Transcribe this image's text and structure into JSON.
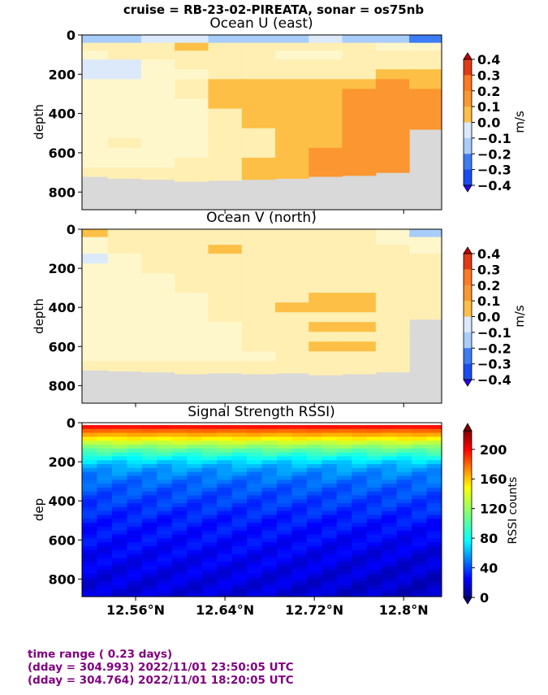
{
  "suptitle": "cruise = RB-23-02-PIREATA,  sonar = os75nb",
  "footer": {
    "line1": "time range ( 0.23 days)",
    "line2": "(dday = 304.993) 2022/11/01 23:50:05 UTC",
    "line3": "(dday = 304.764) 2022/11/01 18:20:05 UTC"
  },
  "colors": {
    "nodata": "#d9d9d9",
    "div_levels": [
      "#2a00ff",
      "#1a4cf2",
      "#3c7cf5",
      "#a9cdfa",
      "#dbe9fb",
      "#fff7cc",
      "#ffefb3",
      "#fdbf45",
      "#fb9630",
      "#fd7a22",
      "#e33a16",
      "#c40000"
    ]
  },
  "chart_data": [
    {
      "type": "heatmap",
      "title": "Ocean U (east)",
      "xlabel": "",
      "ylabel": "depth",
      "x_ticks": [
        "12.56°N",
        "12.64°N",
        "12.72°N",
        "12.8°N"
      ],
      "x_tick_values": [
        12.56,
        12.64,
        12.72,
        12.8
      ],
      "xlim": [
        12.512,
        12.834
      ],
      "ylim": [
        890,
        0
      ],
      "y_ticks": [
        "0",
        "200",
        "400",
        "600",
        "800"
      ],
      "y_tick_values": [
        0,
        200,
        400,
        600,
        800
      ],
      "colorbar": {
        "label": "m/s",
        "ticks": [
          "0.4",
          "0.3",
          "0.2",
          "0.1",
          "0.0",
          "−0.1",
          "−0.2",
          "−0.3",
          "−0.4"
        ],
        "levels": [
          -0.4,
          -0.3,
          -0.2,
          -0.1,
          0.0,
          0.1,
          0.2,
          0.3,
          0.4
        ],
        "extend": "both"
      },
      "depth_bins": [
        20,
        60,
        100,
        150,
        200,
        250,
        300,
        350,
        400,
        450,
        500,
        550,
        600,
        650,
        700,
        750
      ],
      "latitudes": [
        12.52,
        12.55,
        12.58,
        12.61,
        12.64,
        12.67,
        12.7,
        12.73,
        12.76,
        12.79,
        12.82
      ],
      "values": [
        [
          -0.25,
          -0.2,
          -0.15,
          -0.15,
          -0.2,
          -0.25,
          -0.2,
          -0.15,
          -0.2,
          -0.25,
          -0.3
        ],
        [
          0.05,
          0.05,
          0.1,
          0.15,
          0.1,
          0.05,
          0.05,
          0.1,
          0.05,
          -0.05,
          -0.1
        ],
        [
          -0.05,
          0.05,
          0.05,
          0.05,
          0.05,
          0.05,
          -0.05,
          -0.05,
          0.05,
          0.05,
          0.05
        ],
        [
          -0.15,
          -0.15,
          -0.05,
          0.05,
          0.05,
          0.05,
          0.05,
          0.05,
          0.05,
          0.05,
          0.05
        ],
        [
          -0.15,
          -0.15,
          -0.1,
          -0.05,
          0.05,
          0.05,
          0.05,
          0.05,
          0.05,
          0.15,
          0.15
        ],
        [
          -0.05,
          -0.05,
          -0.05,
          0.05,
          0.15,
          0.15,
          0.15,
          0.15,
          0.15,
          0.2,
          0.15
        ],
        [
          -0.05,
          -0.05,
          -0.05,
          0.05,
          0.15,
          0.15,
          0.15,
          0.15,
          0.25,
          0.25,
          0.25
        ],
        [
          -0.05,
          -0.05,
          -0.05,
          -0.05,
          0.15,
          0.15,
          0.15,
          0.15,
          0.25,
          0.25,
          0.25
        ],
        [
          -0.05,
          -0.05,
          -0.05,
          -0.05,
          0.05,
          0.15,
          0.15,
          0.15,
          0.25,
          0.25,
          0.25
        ],
        [
          -0.05,
          -0.05,
          -0.05,
          -0.05,
          0.05,
          0.15,
          0.15,
          0.15,
          0.25,
          0.25,
          0.25
        ],
        [
          -0.05,
          -0.05,
          -0.05,
          -0.05,
          0.05,
          0.05,
          0.15,
          0.15,
          0.25,
          0.25,
          0.25
        ],
        [
          -0.05,
          0.05,
          -0.05,
          -0.05,
          0.05,
          0.05,
          0.15,
          0.15,
          0.25,
          0.25,
          0.25
        ],
        [
          -0.05,
          -0.05,
          -0.05,
          -0.05,
          0.05,
          0.05,
          0.15,
          0.25,
          0.25,
          0.25,
          0.25
        ],
        [
          -0.05,
          -0.05,
          -0.05,
          0.05,
          0.05,
          0.15,
          0.15,
          0.25,
          0.25,
          0.25,
          0.25
        ],
        [
          0.05,
          0.05,
          0.05,
          0.05,
          0.05,
          0.15,
          0.15,
          0.25,
          0.25,
          0.25,
          0.25
        ],
        [
          0.05,
          0.05,
          0.05,
          0.05,
          0.05,
          0.15,
          0.15,
          0.15,
          0.25,
          0.25,
          0.25
        ]
      ],
      "bottom_depth": [
        720,
        730,
        735,
        745,
        740,
        735,
        730,
        720,
        715,
        700,
        480
      ]
    },
    {
      "type": "heatmap",
      "title": "Ocean V (north)",
      "xlabel": "",
      "ylabel": "depth",
      "x_ticks": [
        "12.56°N",
        "12.64°N",
        "12.72°N",
        "12.8°N"
      ],
      "x_tick_values": [
        12.56,
        12.64,
        12.72,
        12.8
      ],
      "xlim": [
        12.512,
        12.834
      ],
      "ylim": [
        890,
        0
      ],
      "y_ticks": [
        "0",
        "200",
        "400",
        "600",
        "800"
      ],
      "y_tick_values": [
        0,
        200,
        400,
        600,
        800
      ],
      "colorbar": {
        "label": "m/s",
        "ticks": [
          "0.4",
          "0.3",
          "0.2",
          "0.1",
          "0.0",
          "−0.1",
          "−0.2",
          "−0.3",
          "−0.4"
        ],
        "levels": [
          -0.4,
          -0.3,
          -0.2,
          -0.1,
          0.0,
          0.1,
          0.2,
          0.3,
          0.4
        ],
        "extend": "both"
      },
      "depth_bins": [
        20,
        60,
        100,
        150,
        200,
        250,
        300,
        350,
        400,
        450,
        500,
        550,
        600,
        650,
        700,
        750
      ],
      "latitudes": [
        12.52,
        12.55,
        12.58,
        12.61,
        12.64,
        12.67,
        12.7,
        12.73,
        12.76,
        12.79,
        12.82
      ],
      "values": [
        [
          0.15,
          0.05,
          0.05,
          0.05,
          0.05,
          0.05,
          0.05,
          0.05,
          0.05,
          -0.05,
          -0.25
        ],
        [
          -0.05,
          0.05,
          0.05,
          0.05,
          0.05,
          0.05,
          0.05,
          0.05,
          0.05,
          -0.05,
          -0.05
        ],
        [
          -0.05,
          0.05,
          0.05,
          0.05,
          0.15,
          0.05,
          0.05,
          0.05,
          0.05,
          0.05,
          -0.05
        ],
        [
          -0.15,
          -0.05,
          0.05,
          0.05,
          0.05,
          0.05,
          0.05,
          0.05,
          0.05,
          0.05,
          0.05
        ],
        [
          -0.05,
          -0.05,
          0.05,
          0.05,
          0.05,
          0.05,
          0.05,
          0.05,
          0.05,
          0.05,
          0.05
        ],
        [
          -0.05,
          -0.05,
          -0.05,
          0.05,
          0.05,
          0.05,
          0.05,
          0.05,
          0.05,
          0.05,
          0.05
        ],
        [
          -0.05,
          -0.05,
          -0.05,
          0.05,
          0.05,
          0.05,
          0.05,
          0.05,
          0.05,
          0.05,
          0.05
        ],
        [
          -0.05,
          -0.05,
          -0.05,
          -0.05,
          0.05,
          0.05,
          0.05,
          0.15,
          0.15,
          0.05,
          0.05
        ],
        [
          -0.05,
          -0.05,
          -0.05,
          -0.05,
          0.05,
          0.05,
          0.15,
          0.15,
          0.15,
          0.05,
          0.05
        ],
        [
          -0.05,
          -0.05,
          -0.05,
          -0.05,
          0.05,
          0.05,
          0.05,
          0.05,
          0.05,
          0.05,
          0.05
        ],
        [
          -0.05,
          -0.05,
          -0.05,
          -0.05,
          -0.05,
          0.05,
          0.05,
          0.15,
          0.15,
          0.05,
          0.05
        ],
        [
          -0.05,
          -0.05,
          -0.05,
          -0.05,
          -0.05,
          0.05,
          0.05,
          0.05,
          0.05,
          0.05,
          0.05
        ],
        [
          -0.05,
          -0.05,
          -0.05,
          -0.05,
          -0.05,
          0.05,
          0.05,
          0.15,
          0.15,
          0.05,
          0.05
        ],
        [
          -0.05,
          -0.05,
          -0.05,
          -0.05,
          -0.05,
          -0.05,
          0.05,
          0.05,
          0.05,
          0.05,
          0.05
        ],
        [
          0.05,
          0.05,
          0.05,
          0.05,
          0.05,
          0.05,
          0.05,
          0.05,
          0.05,
          0.05,
          0.05
        ],
        [
          0.05,
          0.05,
          0.05,
          0.05,
          0.05,
          0.05,
          0.05,
          0.05,
          0.05,
          0.05,
          0.05
        ]
      ],
      "bottom_depth": [
        720,
        725,
        730,
        740,
        735,
        740,
        735,
        745,
        740,
        730,
        460
      ]
    },
    {
      "type": "heatmap",
      "title": "Signal Strength RSSI)",
      "xlabel": "",
      "ylabel": "dep",
      "x_ticks": [
        "12.56°N",
        "12.64°N",
        "12.72°N",
        "12.8°N"
      ],
      "x_tick_values": [
        12.56,
        12.64,
        12.72,
        12.8
      ],
      "xlim": [
        12.512,
        12.834
      ],
      "ylim": [
        890,
        0
      ],
      "y_ticks": [
        "0",
        "200",
        "400",
        "600",
        "800"
      ],
      "y_tick_values": [
        0,
        200,
        400,
        600,
        800
      ],
      "colorbar": {
        "label": "RSSI counts",
        "ticks": [
          "200",
          "160",
          "120",
          "80",
          "40",
          "0"
        ],
        "range": [
          0,
          225
        ],
        "extend": "min"
      },
      "depth_profile": [
        [
          20,
          195
        ],
        [
          40,
          175
        ],
        [
          60,
          160
        ],
        [
          80,
          145
        ],
        [
          100,
          130
        ],
        [
          120,
          118
        ],
        [
          140,
          106
        ],
        [
          160,
          96
        ],
        [
          180,
          86
        ],
        [
          200,
          76
        ],
        [
          220,
          68
        ],
        [
          250,
          60
        ],
        [
          300,
          52
        ],
        [
          350,
          46
        ],
        [
          400,
          42
        ],
        [
          450,
          38
        ],
        [
          500,
          34
        ],
        [
          600,
          30
        ],
        [
          700,
          26
        ],
        [
          800,
          22
        ],
        [
          880,
          20
        ]
      ]
    }
  ]
}
